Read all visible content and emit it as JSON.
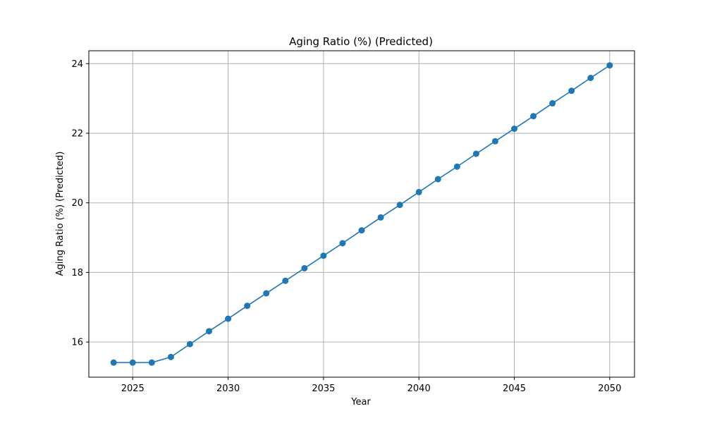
{
  "chart_data": {
    "type": "line",
    "title": "Aging Ratio (%) (Predicted)",
    "xlabel": "Year",
    "ylabel": "Aging Ratio (%) (Predicted)",
    "xlim": [
      2022.7,
      2051.3
    ],
    "ylim": [
      14.99,
      24.37
    ],
    "xticks": [
      2025,
      2030,
      2035,
      2040,
      2045,
      2050
    ],
    "yticks": [
      16,
      18,
      20,
      22,
      24
    ],
    "grid": true,
    "series": [
      {
        "color": "#1f77b4",
        "x": [
          2024,
          2025,
          2026,
          2027,
          2028,
          2029,
          2030,
          2031,
          2032,
          2033,
          2034,
          2035,
          2036,
          2037,
          2038,
          2039,
          2040,
          2041,
          2042,
          2043,
          2044,
          2045,
          2046,
          2047,
          2048,
          2049,
          2050
        ],
        "values": [
          15.41,
          15.41,
          15.41,
          15.57,
          15.94,
          16.31,
          16.67,
          17.04,
          17.4,
          17.76,
          18.12,
          18.48,
          18.84,
          19.21,
          19.58,
          19.94,
          20.31,
          20.68,
          21.04,
          21.41,
          21.77,
          22.13,
          22.49,
          22.86,
          23.22,
          23.59,
          23.95
        ]
      }
    ]
  }
}
